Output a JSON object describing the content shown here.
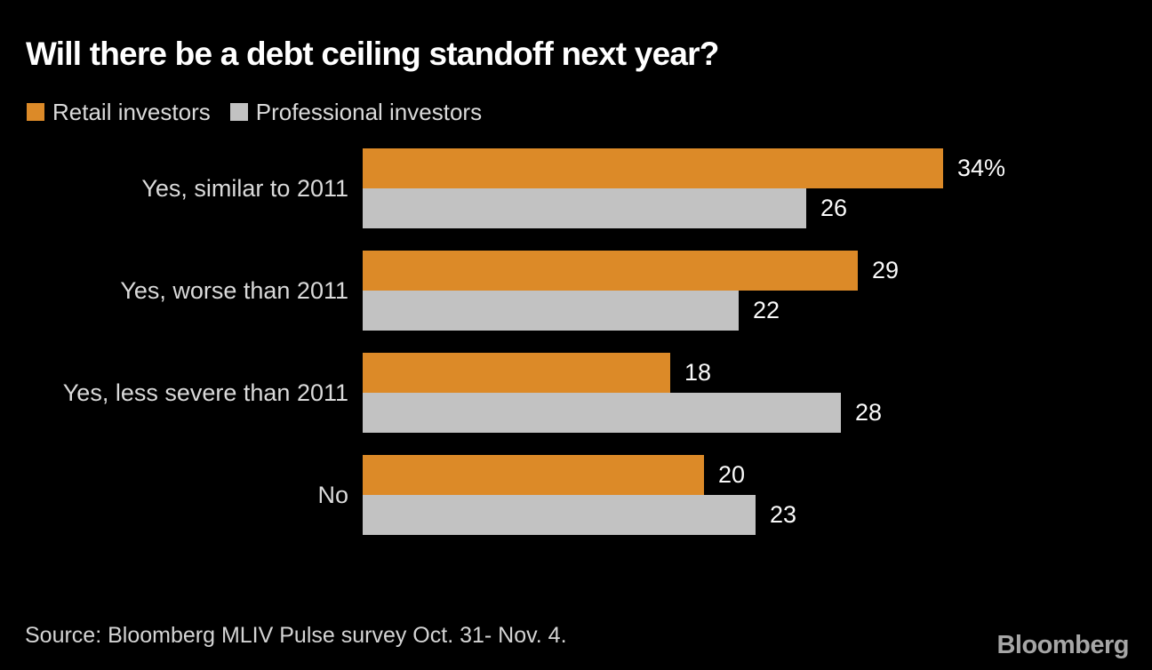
{
  "chart": {
    "title": "Will there be a debt ceiling standoff next year?",
    "source": "Source: Bloomberg MLIV Pulse survey Oct. 31- Nov. 4.",
    "logo": "Bloomberg",
    "colors": {
      "background": "#000000",
      "retail_orange": "#DC8A28",
      "professional_gray": "#C2C2C2",
      "title_text": "#FFFFFF",
      "label_text": "#DADADA",
      "value_text": "#FAFAFA",
      "source_text": "#D4D4D4",
      "logo_text": "#A6A6A6"
    }
  },
  "chart_data": {
    "type": "bar",
    "orientation": "horizontal",
    "title": "Will there be a debt ceiling standoff next year?",
    "categories": [
      "Yes, similar to 2011",
      "Yes, worse than 2011",
      "Yes, less severe than 2011",
      "No"
    ],
    "series": [
      {
        "name": "Retail investors",
        "color": "#DC8A28",
        "values": [
          34,
          29,
          18,
          20
        ],
        "value_labels": [
          "34%",
          "29",
          "18",
          "20"
        ]
      },
      {
        "name": "Professional investors",
        "color": "#C2C2C2",
        "values": [
          26,
          22,
          28,
          23
        ],
        "value_labels": [
          "26",
          "22",
          "28",
          "23"
        ]
      }
    ],
    "unit": "percent",
    "xlim": [
      0,
      34
    ],
    "grid": false,
    "legend_position": "top",
    "source": "Source: Bloomberg MLIV Pulse survey Oct. 31- Nov. 4."
  }
}
